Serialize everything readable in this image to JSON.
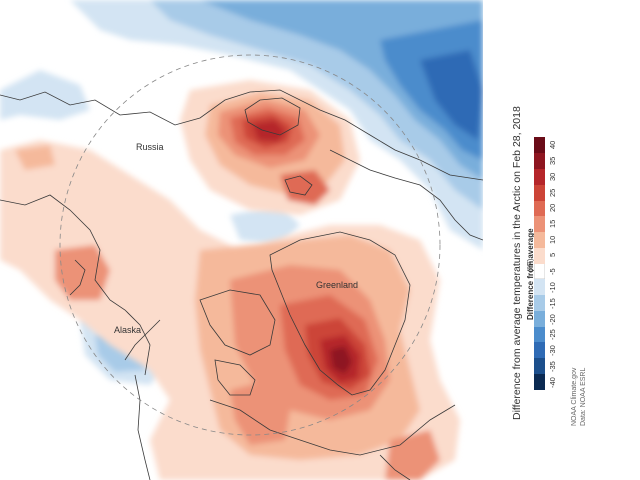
{
  "title": "Difference from average temperatures in the Arctic on Feb 28, 2018",
  "legend": {
    "heading": "Difference from average",
    "unit": "(°F)",
    "ticks": [
      "-40",
      "-35",
      "-30",
      "-25",
      "-20",
      "-15",
      "-10",
      "-5",
      "5",
      "10",
      "15",
      "20",
      "25",
      "30",
      "35",
      "40"
    ],
    "colors": [
      "#0b2a52",
      "#1c4f8c",
      "#2f6bb5",
      "#4b8ccc",
      "#79aedb",
      "#a8cbe8",
      "#d3e4f3",
      "#ffffff",
      "#fbdccc",
      "#f5b99b",
      "#ec9277",
      "#df6a54",
      "#cc4437",
      "#b5262a",
      "#8e1620",
      "#6a0c18"
    ]
  },
  "places": {
    "russia": "Russia",
    "greenland": "Greenland",
    "alaska": "Alaska"
  },
  "credits": {
    "line1": "NOAA Climate.gov",
    "line2": "Data: NOAA ESRL"
  },
  "map_colors": {
    "ocean_neutral": "#ffffff",
    "coastline": "#3a3a3a",
    "circle": "#888888"
  }
}
